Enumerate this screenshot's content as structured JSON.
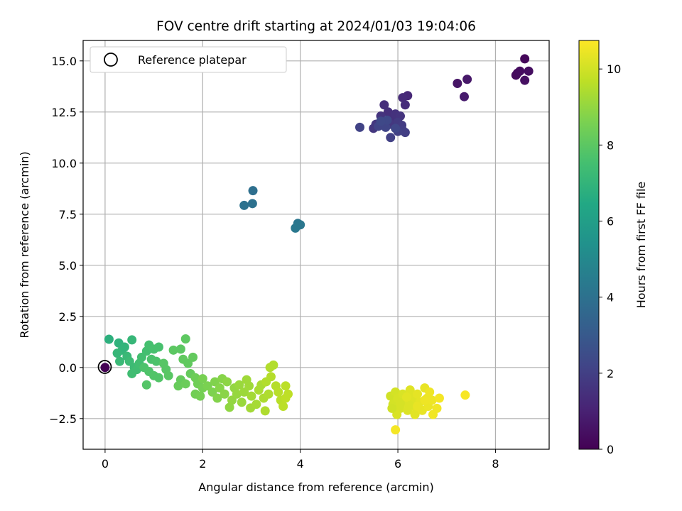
{
  "chart_data": {
    "type": "scatter",
    "title": "FOV centre drift starting at 2024/01/03 19:04:06",
    "xlabel": "Angular distance from reference (arcmin)",
    "ylabel": "Rotation from reference (arcmin)",
    "xlim": [
      -0.45,
      9.1
    ],
    "ylim": [
      -4.0,
      16.0
    ],
    "xticks": [
      0,
      2,
      4,
      6,
      8
    ],
    "xtick_labels": [
      "0",
      "2",
      "4",
      "6",
      "8"
    ],
    "yticks": [
      -2.5,
      0.0,
      2.5,
      5.0,
      7.5,
      10.0,
      12.5,
      15.0
    ],
    "ytick_labels": [
      "−2.5",
      "0.0",
      "2.5",
      "5.0",
      "7.5",
      "10.0",
      "12.5",
      "15.0"
    ],
    "grid": true,
    "legend": {
      "position": "upper-left",
      "entries": [
        "Reference platepar"
      ]
    },
    "reference_point": {
      "x": 0,
      "y": 0
    },
    "colorbar": {
      "label": "Hours from first FF file",
      "colormap": "viridis",
      "range": [
        0,
        10.75
      ],
      "ticks": [
        0,
        2,
        4,
        6,
        8,
        10
      ],
      "tick_labels": [
        "0",
        "2",
        "4",
        "6",
        "8",
        "10"
      ]
    },
    "points": [
      {
        "x": 8.6,
        "y": 15.1,
        "c": 0.2
      },
      {
        "x": 8.45,
        "y": 14.4,
        "c": 0.3
      },
      {
        "x": 8.42,
        "y": 14.3,
        "c": 0.3
      },
      {
        "x": 8.5,
        "y": 14.5,
        "c": 0.35
      },
      {
        "x": 8.68,
        "y": 14.5,
        "c": 0.4
      },
      {
        "x": 8.6,
        "y": 14.05,
        "c": 0.45
      },
      {
        "x": 7.22,
        "y": 13.9,
        "c": 0.6
      },
      {
        "x": 7.42,
        "y": 14.1,
        "c": 0.7
      },
      {
        "x": 7.36,
        "y": 13.25,
        "c": 0.8
      },
      {
        "x": 6.2,
        "y": 13.3,
        "c": 1.2
      },
      {
        "x": 6.1,
        "y": 13.2,
        "c": 1.3
      },
      {
        "x": 6.15,
        "y": 12.85,
        "c": 1.35
      },
      {
        "x": 5.72,
        "y": 12.85,
        "c": 1.4
      },
      {
        "x": 5.9,
        "y": 12.2,
        "c": 1.5
      },
      {
        "x": 5.8,
        "y": 12.5,
        "c": 1.45
      },
      {
        "x": 5.95,
        "y": 12.4,
        "c": 1.55
      },
      {
        "x": 6.05,
        "y": 12.3,
        "c": 1.6
      },
      {
        "x": 5.65,
        "y": 12.3,
        "c": 1.6
      },
      {
        "x": 5.7,
        "y": 12.0,
        "c": 1.65
      },
      {
        "x": 5.55,
        "y": 11.9,
        "c": 1.7
      },
      {
        "x": 5.5,
        "y": 11.7,
        "c": 1.7
      },
      {
        "x": 5.85,
        "y": 11.9,
        "c": 1.75
      },
      {
        "x": 6.0,
        "y": 12.0,
        "c": 1.8
      },
      {
        "x": 6.08,
        "y": 11.85,
        "c": 1.85
      },
      {
        "x": 6.1,
        "y": 11.6,
        "c": 1.9
      },
      {
        "x": 6.15,
        "y": 11.5,
        "c": 1.95
      },
      {
        "x": 6.0,
        "y": 11.55,
        "c": 2.0
      },
      {
        "x": 5.85,
        "y": 11.25,
        "c": 2.05
      },
      {
        "x": 5.22,
        "y": 11.75,
        "c": 2.1
      },
      {
        "x": 5.6,
        "y": 11.8,
        "c": 2.15
      },
      {
        "x": 5.75,
        "y": 11.75,
        "c": 2.2
      },
      {
        "x": 5.95,
        "y": 11.7,
        "c": 2.25
      },
      {
        "x": 5.78,
        "y": 12.1,
        "c": 2.3
      },
      {
        "x": 5.65,
        "y": 12.05,
        "c": 2.35
      },
      {
        "x": 3.03,
        "y": 8.65,
        "c": 3.9
      },
      {
        "x": 3.02,
        "y": 8.02,
        "c": 4.0
      },
      {
        "x": 2.85,
        "y": 7.93,
        "c": 4.05
      },
      {
        "x": 3.95,
        "y": 7.05,
        "c": 4.2
      },
      {
        "x": 4.0,
        "y": 6.98,
        "c": 4.25
      },
      {
        "x": 3.9,
        "y": 6.82,
        "c": 4.3
      },
      {
        "x": 0.08,
        "y": 1.38,
        "c": 6.8
      },
      {
        "x": 0.28,
        "y": 1.2,
        "c": 6.9
      },
      {
        "x": 0.4,
        "y": 1.0,
        "c": 7.0
      },
      {
        "x": 0.35,
        "y": 0.85,
        "c": 7.0
      },
      {
        "x": 0.55,
        "y": 1.35,
        "c": 7.1
      },
      {
        "x": 0.25,
        "y": 0.7,
        "c": 7.1
      },
      {
        "x": 0.45,
        "y": 0.55,
        "c": 7.2
      },
      {
        "x": 0.3,
        "y": 0.3,
        "c": 7.2
      },
      {
        "x": 0.5,
        "y": 0.3,
        "c": 7.3
      },
      {
        "x": 0.6,
        "y": 0.0,
        "c": 7.3
      },
      {
        "x": 0.55,
        "y": -0.3,
        "c": 7.4
      },
      {
        "x": 0.65,
        "y": -0.1,
        "c": 7.4
      },
      {
        "x": 0.7,
        "y": 0.2,
        "c": 7.45
      },
      {
        "x": 0.75,
        "y": 0.5,
        "c": 7.5
      },
      {
        "x": 0.85,
        "y": 0.8,
        "c": 7.5
      },
      {
        "x": 0.9,
        "y": 1.1,
        "c": 7.55
      },
      {
        "x": 1.0,
        "y": 0.9,
        "c": 7.6
      },
      {
        "x": 1.1,
        "y": 1.0,
        "c": 7.6
      },
      {
        "x": 0.95,
        "y": 0.4,
        "c": 7.65
      },
      {
        "x": 1.05,
        "y": 0.3,
        "c": 7.7
      },
      {
        "x": 0.8,
        "y": 0.0,
        "c": 7.7
      },
      {
        "x": 0.9,
        "y": -0.2,
        "c": 7.75
      },
      {
        "x": 1.0,
        "y": -0.4,
        "c": 7.8
      },
      {
        "x": 1.1,
        "y": -0.5,
        "c": 7.8
      },
      {
        "x": 0.85,
        "y": -0.85,
        "c": 7.85
      },
      {
        "x": 1.2,
        "y": 0.2,
        "c": 7.9
      },
      {
        "x": 1.25,
        "y": -0.1,
        "c": 7.9
      },
      {
        "x": 1.3,
        "y": -0.4,
        "c": 7.95
      },
      {
        "x": 1.4,
        "y": 0.85,
        "c": 8.0
      },
      {
        "x": 1.55,
        "y": 0.9,
        "c": 8.0
      },
      {
        "x": 1.65,
        "y": 1.4,
        "c": 8.05
      },
      {
        "x": 1.6,
        "y": 0.4,
        "c": 8.1
      },
      {
        "x": 1.7,
        "y": 0.2,
        "c": 8.1
      },
      {
        "x": 1.8,
        "y": 0.5,
        "c": 8.15
      },
      {
        "x": 1.75,
        "y": -0.3,
        "c": 8.2
      },
      {
        "x": 1.55,
        "y": -0.6,
        "c": 8.2
      },
      {
        "x": 1.5,
        "y": -0.9,
        "c": 8.25
      },
      {
        "x": 1.65,
        "y": -0.8,
        "c": 8.3
      },
      {
        "x": 1.85,
        "y": -0.5,
        "c": 8.35
      },
      {
        "x": 1.9,
        "y": -0.8,
        "c": 8.4
      },
      {
        "x": 1.85,
        "y": -1.3,
        "c": 8.45
      },
      {
        "x": 1.95,
        "y": -1.4,
        "c": 8.5
      },
      {
        "x": 2.0,
        "y": -1.0,
        "c": 8.5
      },
      {
        "x": 2.0,
        "y": -0.55,
        "c": 8.55
      },
      {
        "x": 2.1,
        "y": -0.9,
        "c": 8.6
      },
      {
        "x": 2.2,
        "y": -1.2,
        "c": 8.65
      },
      {
        "x": 2.25,
        "y": -0.7,
        "c": 8.7
      },
      {
        "x": 2.3,
        "y": -1.5,
        "c": 8.75
      },
      {
        "x": 2.35,
        "y": -1.0,
        "c": 8.8
      },
      {
        "x": 2.4,
        "y": -0.55,
        "c": 8.8
      },
      {
        "x": 2.45,
        "y": -1.3,
        "c": 8.85
      },
      {
        "x": 2.5,
        "y": -0.7,
        "c": 8.9
      },
      {
        "x": 2.55,
        "y": -1.95,
        "c": 8.95
      },
      {
        "x": 2.6,
        "y": -1.6,
        "c": 9.0
      },
      {
        "x": 2.65,
        "y": -1.0,
        "c": 9.0
      },
      {
        "x": 2.7,
        "y": -1.3,
        "c": 9.05
      },
      {
        "x": 2.75,
        "y": -0.85,
        "c": 9.1
      },
      {
        "x": 2.8,
        "y": -1.7,
        "c": 9.1
      },
      {
        "x": 2.85,
        "y": -1.2,
        "c": 9.15
      },
      {
        "x": 2.95,
        "y": -0.9,
        "c": 9.2
      },
      {
        "x": 3.0,
        "y": -1.4,
        "c": 9.25
      },
      {
        "x": 2.98,
        "y": -1.98,
        "c": 9.25
      },
      {
        "x": 3.1,
        "y": -1.8,
        "c": 9.3
      },
      {
        "x": 3.15,
        "y": -1.1,
        "c": 9.35
      },
      {
        "x": 3.2,
        "y": -0.85,
        "c": 9.35
      },
      {
        "x": 3.25,
        "y": -1.5,
        "c": 9.4
      },
      {
        "x": 3.28,
        "y": -2.12,
        "c": 9.45
      },
      {
        "x": 3.35,
        "y": -1.3,
        "c": 9.45
      },
      {
        "x": 3.38,
        "y": 0.0,
        "c": 9.5
      },
      {
        "x": 3.45,
        "y": 0.12,
        "c": 9.5
      },
      {
        "x": 3.4,
        "y": -0.45,
        "c": 9.55
      },
      {
        "x": 3.5,
        "y": -0.9,
        "c": 9.55
      },
      {
        "x": 3.55,
        "y": -1.2,
        "c": 9.6
      },
      {
        "x": 3.6,
        "y": -1.6,
        "c": 9.6
      },
      {
        "x": 3.65,
        "y": -1.9,
        "c": 9.65
      },
      {
        "x": 3.7,
        "y": -0.9,
        "c": 9.65
      },
      {
        "x": 3.75,
        "y": -1.3,
        "c": 9.7
      },
      {
        "x": 3.7,
        "y": -1.5,
        "c": 9.7
      },
      {
        "x": 3.3,
        "y": -0.7,
        "c": 9.5
      },
      {
        "x": 2.9,
        "y": -0.6,
        "c": 9.2
      },
      {
        "x": 5.85,
        "y": -1.4,
        "c": 10.0
      },
      {
        "x": 5.95,
        "y": -1.2,
        "c": 10.05
      },
      {
        "x": 5.9,
        "y": -1.8,
        "c": 10.05
      },
      {
        "x": 6.0,
        "y": -1.5,
        "c": 10.1
      },
      {
        "x": 6.05,
        "y": -2.0,
        "c": 10.1
      },
      {
        "x": 5.98,
        "y": -2.3,
        "c": 10.15
      },
      {
        "x": 6.1,
        "y": -1.3,
        "c": 10.15
      },
      {
        "x": 6.15,
        "y": -1.7,
        "c": 10.2
      },
      {
        "x": 6.2,
        "y": -2.1,
        "c": 10.2
      },
      {
        "x": 6.25,
        "y": -1.1,
        "c": 10.25
      },
      {
        "x": 6.3,
        "y": -1.5,
        "c": 10.25
      },
      {
        "x": 6.32,
        "y": -1.9,
        "c": 10.3
      },
      {
        "x": 6.35,
        "y": -2.3,
        "c": 10.3
      },
      {
        "x": 6.4,
        "y": -1.3,
        "c": 10.35
      },
      {
        "x": 6.45,
        "y": -1.7,
        "c": 10.35
      },
      {
        "x": 6.5,
        "y": -2.1,
        "c": 10.4
      },
      {
        "x": 6.55,
        "y": -1.0,
        "c": 10.4
      },
      {
        "x": 6.6,
        "y": -1.5,
        "c": 10.45
      },
      {
        "x": 6.62,
        "y": -1.9,
        "c": 10.45
      },
      {
        "x": 6.65,
        "y": -1.2,
        "c": 10.5
      },
      {
        "x": 6.7,
        "y": -1.6,
        "c": 10.5
      },
      {
        "x": 6.72,
        "y": -2.3,
        "c": 10.55
      },
      {
        "x": 6.8,
        "y": -2.0,
        "c": 10.55
      },
      {
        "x": 6.85,
        "y": -1.5,
        "c": 10.6
      },
      {
        "x": 7.38,
        "y": -1.35,
        "c": 10.65
      },
      {
        "x": 5.95,
        "y": -3.05,
        "c": 10.6
      },
      {
        "x": 6.05,
        "y": -1.75,
        "c": 10.1
      },
      {
        "x": 6.25,
        "y": -1.85,
        "c": 10.2
      },
      {
        "x": 6.4,
        "y": -1.9,
        "c": 10.4
      },
      {
        "x": 6.55,
        "y": -1.6,
        "c": 10.5
      },
      {
        "x": 5.88,
        "y": -2.0,
        "c": 10.0
      },
      {
        "x": 6.18,
        "y": -1.45,
        "c": 10.3
      }
    ]
  }
}
